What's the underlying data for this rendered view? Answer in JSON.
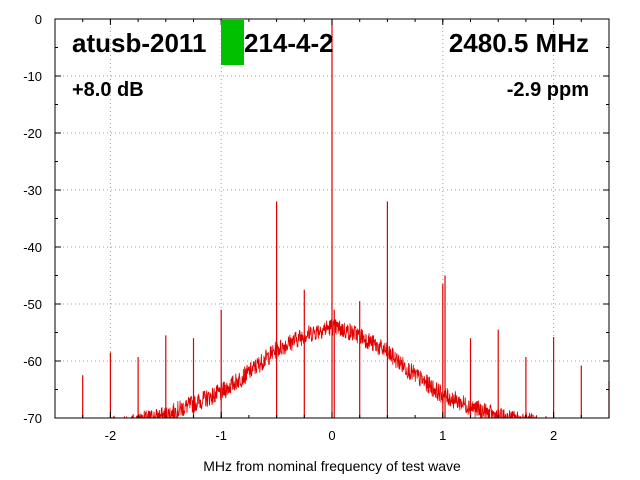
{
  "chart_data": {
    "type": "line",
    "title": "",
    "xlabel": "MHz from nominal frequency of test wave",
    "ylabel": "",
    "xlim": [
      -2.5,
      2.5
    ],
    "ylim": [
      -70,
      0
    ],
    "xticks": [
      -2,
      -1,
      0,
      1,
      2
    ],
    "xtick_labels": [
      "-2",
      "-1",
      "0",
      "1",
      "2"
    ],
    "yticks": [
      0,
      -10,
      -20,
      -30,
      -40,
      -50,
      -60,
      -70
    ],
    "ytick_labels": [
      "0",
      "-10",
      "-20",
      "-30",
      "-40",
      "-50",
      "-60",
      "-70"
    ],
    "grid": true,
    "grid_style": "dotted",
    "series_color": "#e00000",
    "annotations": {
      "device_id": "atusb-2011",
      "device_id_suffix": "214-4-2",
      "frequency": "2480.5 MHz",
      "gain": "+8.0 dB",
      "offset": "-2.9 ppm",
      "marker_color": "#00c000"
    },
    "noise_floor": {
      "x": [
        -2.0,
        -1.75,
        -1.5,
        -1.25,
        -1.0,
        -0.75,
        -0.5,
        -0.25,
        -0.1,
        0.0,
        0.1,
        0.25,
        0.5,
        0.75,
        1.0,
        1.25,
        1.5,
        1.75,
        2.0
      ],
      "y": [
        -71.5,
        -70.5,
        -69.5,
        -67.5,
        -65.5,
        -62.0,
        -58.0,
        -55.5,
        -54.5,
        -54.0,
        -54.5,
        -55.5,
        -58.5,
        -62.5,
        -66.0,
        -68.0,
        -69.8,
        -70.5,
        -71.5
      ]
    },
    "spurs": {
      "x": [
        -2.25,
        -2.0,
        -1.75,
        -1.5,
        -1.25,
        -1.0,
        -0.5,
        -0.25,
        0.0,
        0.02,
        0.25,
        0.5,
        1.0,
        1.02,
        1.25,
        1.5,
        1.75,
        2.0,
        2.25,
        2.5
      ],
      "y": [
        -62.5,
        -58.5,
        -59.3,
        -55.5,
        -56.0,
        -51.0,
        -32.0,
        -47.5,
        0.0,
        -51.0,
        -49.5,
        -32.0,
        -46.5,
        -45.0,
        -56.0,
        -54.5,
        -59.3,
        -55.8,
        -60.8,
        -63.5
      ]
    }
  }
}
